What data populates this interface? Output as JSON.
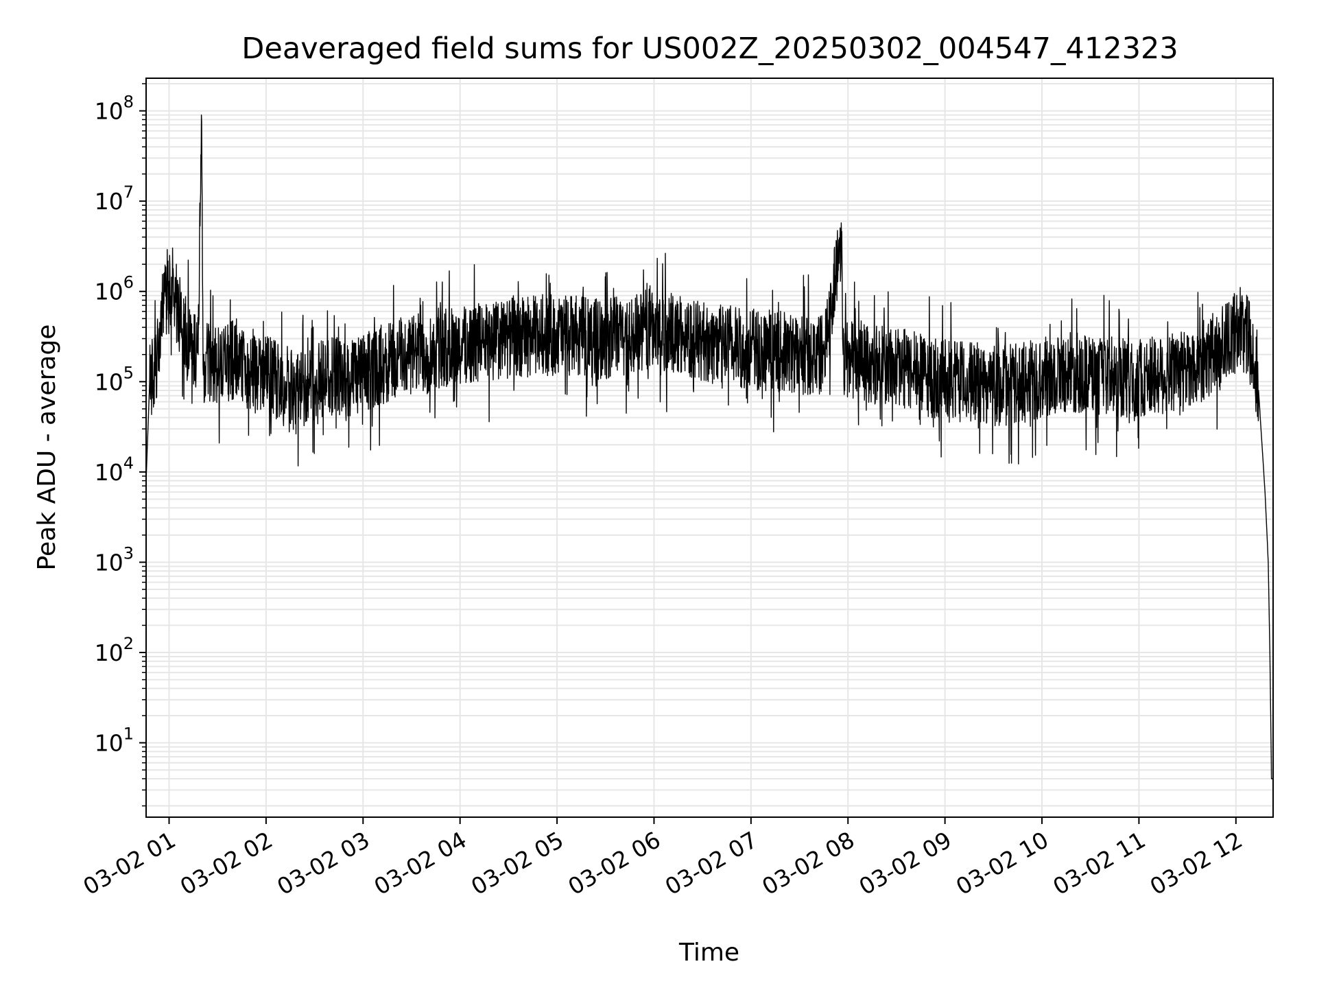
{
  "chart_data": {
    "type": "line",
    "title": "Deaveraged field sums for US002Z_20250302_004547_412323",
    "xlabel": "Time",
    "ylabel": "Peak ADU - average",
    "yscale": "log",
    "xlim": [
      "03-02 00:45:47",
      "03-02 12:23:00"
    ],
    "ylim": [
      1.5,
      230000000.0
    ],
    "grid": true,
    "x_ticks": [
      "03-02 01",
      "03-02 02",
      "03-02 03",
      "03-02 04",
      "03-02 05",
      "03-02 06",
      "03-02 07",
      "03-02 08",
      "03-02 09",
      "03-02 10",
      "03-02 11",
      "03-02 12"
    ],
    "y_ticks": [
      {
        "value": 10,
        "base": "10",
        "exp": "1"
      },
      {
        "value": 100,
        "base": "10",
        "exp": "2"
      },
      {
        "value": 1000,
        "base": "10",
        "exp": "3"
      },
      {
        "value": 10000,
        "base": "10",
        "exp": "4"
      },
      {
        "value": 100000,
        "base": "10",
        "exp": "5"
      },
      {
        "value": 1000000,
        "base": "10",
        "exp": "6"
      },
      {
        "value": 10000000,
        "base": "10",
        "exp": "7"
      },
      {
        "value": 100000000,
        "base": "10",
        "exp": "8"
      }
    ],
    "series": [
      {
        "color": "#000000",
        "x": [
          "00:45:47",
          "00:48",
          "00:52",
          "00:56",
          "01:00",
          "01:06",
          "01:12",
          "01:18",
          "01:20",
          "01:21",
          "01:24",
          "01:30",
          "01:40",
          "01:50",
          "02:00",
          "02:10",
          "02:20",
          "02:30",
          "02:40",
          "02:50",
          "03:00",
          "03:10",
          "03:20",
          "03:30",
          "03:45",
          "04:00",
          "04:15",
          "04:30",
          "04:45",
          "05:00",
          "05:15",
          "05:30",
          "05:45",
          "06:00",
          "06:15",
          "06:30",
          "06:45",
          "07:00",
          "07:15",
          "07:30",
          "07:45",
          "07:56",
          "07:57",
          "08:00",
          "08:15",
          "08:30",
          "08:45",
          "09:00",
          "09:15",
          "09:30",
          "09:45",
          "10:00",
          "10:15",
          "10:30",
          "10:45",
          "11:00",
          "11:15",
          "11:30",
          "11:45",
          "12:00",
          "12:05",
          "12:10",
          "12:14",
          "12:18",
          "12:20",
          "12:21",
          "12:22",
          "12:23"
        ],
        "y": [
          8000,
          100000,
          140000,
          600000,
          1300000,
          600000,
          300000,
          200000,
          90000000,
          150000,
          160000,
          140000,
          170000,
          130000,
          120000,
          100000,
          85000,
          90000,
          120000,
          100000,
          120000,
          150000,
          180000,
          200000,
          220000,
          250000,
          280000,
          300000,
          320000,
          330000,
          320000,
          300000,
          330000,
          400000,
          330000,
          280000,
          250000,
          230000,
          220000,
          200000,
          200000,
          4000000,
          200000,
          180000,
          160000,
          150000,
          120000,
          100000,
          100000,
          90000,
          95000,
          110000,
          130000,
          120000,
          110000,
          110000,
          120000,
          130000,
          200000,
          350000,
          500000,
          200000,
          80000,
          6000,
          1000,
          100,
          4,
          4
        ]
      }
    ]
  }
}
